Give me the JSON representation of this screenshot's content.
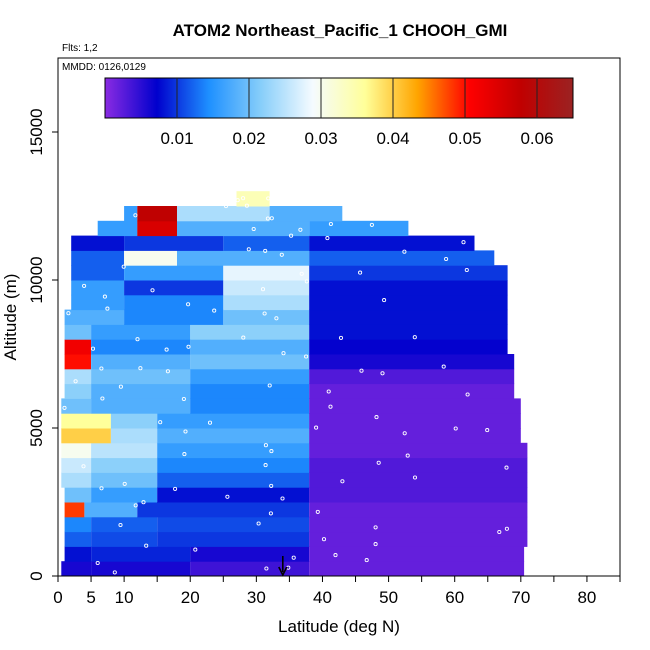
{
  "chart_data": {
    "type": "heatmap",
    "title": "ATOM2 Northeast_Pacific_1 CHOOH_GMI",
    "annotations": [
      "Flts: 1,2",
      "MMDD: 0126,0129"
    ],
    "xlabel": "Latitude (deg N)",
    "ylabel": "Altitude (m)",
    "xlim": [
      0,
      85
    ],
    "ylim": [
      0,
      17500
    ],
    "x_ticks": [
      0,
      5,
      10,
      20,
      30,
      40,
      50,
      60,
      70,
      80
    ],
    "x_minor_ticks": [
      15,
      25,
      35,
      45,
      55,
      65,
      75,
      85
    ],
    "y_ticks": [
      0,
      5000,
      10000,
      15000
    ],
    "colorbar": {
      "range": [
        0,
        0.065
      ],
      "ticks": [
        0.01,
        0.02,
        0.03,
        0.04,
        0.05,
        0.06
      ],
      "colors": [
        "#8a2be2",
        "#0000cd",
        "#1e90ff",
        "#87cefa",
        "#f5fbff",
        "#ffff99",
        "#ffa500",
        "#ff0000",
        "#c00000",
        "#9b2222"
      ]
    },
    "marker": {
      "x": 34,
      "label": "arrow"
    },
    "bands": [
      {
        "alt": [
          0,
          500
        ],
        "segments": [
          [
            0.5,
            5,
            0.006
          ],
          [
            5,
            20,
            0.006
          ],
          [
            20,
            38,
            0.004
          ],
          [
            38,
            70.5,
            0.002
          ]
        ]
      },
      {
        "alt": [
          500,
          1000
        ],
        "segments": [
          [
            1,
            5,
            0.008
          ],
          [
            5,
            20,
            0.009
          ],
          [
            20,
            38,
            0.006
          ],
          [
            38,
            70.5,
            0.002
          ]
        ]
      },
      {
        "alt": [
          1000,
          1500
        ],
        "segments": [
          [
            1,
            5,
            0.012
          ],
          [
            5,
            15,
            0.011
          ],
          [
            15,
            38,
            0.01
          ],
          [
            38,
            71,
            0.002
          ]
        ]
      },
      {
        "alt": [
          1500,
          2000
        ],
        "segments": [
          [
            1,
            5,
            0.014
          ],
          [
            5,
            15,
            0.012
          ],
          [
            15,
            38,
            0.011
          ],
          [
            38,
            71,
            0.002
          ]
        ]
      },
      {
        "alt": [
          2000,
          2500
        ],
        "segments": [
          [
            1,
            4,
            0.048
          ],
          [
            4,
            12,
            0.018
          ],
          [
            12,
            38,
            0.01
          ],
          [
            38,
            71,
            0.002
          ]
        ]
      },
      {
        "alt": [
          2500,
          3000
        ],
        "segments": [
          [
            1,
            5,
            0.02
          ],
          [
            5,
            15,
            0.016
          ],
          [
            15,
            38,
            0.008
          ],
          [
            38,
            71,
            0.003
          ]
        ]
      },
      {
        "alt": [
          3000,
          3500
        ],
        "segments": [
          [
            0.5,
            5,
            0.024
          ],
          [
            5,
            15,
            0.02
          ],
          [
            15,
            38,
            0.012
          ],
          [
            38,
            71,
            0.003
          ]
        ]
      },
      {
        "alt": [
          3500,
          4000
        ],
        "segments": [
          [
            0.5,
            5,
            0.026
          ],
          [
            5,
            15,
            0.022
          ],
          [
            15,
            38,
            0.014
          ],
          [
            38,
            71,
            0.003
          ]
        ]
      },
      {
        "alt": [
          4000,
          4500
        ],
        "segments": [
          [
            0.5,
            5,
            0.03
          ],
          [
            5,
            15,
            0.025
          ],
          [
            15,
            38,
            0.016
          ],
          [
            38,
            71,
            0.002
          ]
        ]
      },
      {
        "alt": [
          4500,
          5000
        ],
        "segments": [
          [
            0.5,
            8,
            0.04
          ],
          [
            8,
            15,
            0.024
          ],
          [
            15,
            38,
            0.018
          ],
          [
            38,
            70,
            0.002
          ]
        ]
      },
      {
        "alt": [
          5000,
          5500
        ],
        "segments": [
          [
            0.5,
            8,
            0.036
          ],
          [
            8,
            15,
            0.022
          ],
          [
            15,
            38,
            0.016
          ],
          [
            38,
            70,
            0.002
          ]
        ]
      },
      {
        "alt": [
          5500,
          6000
        ],
        "segments": [
          [
            0.5,
            5,
            0.02
          ],
          [
            5,
            20,
            0.018
          ],
          [
            20,
            38,
            0.014
          ],
          [
            38,
            70,
            0.002
          ]
        ]
      },
      {
        "alt": [
          6000,
          6500
        ],
        "segments": [
          [
            1,
            5,
            0.022
          ],
          [
            5,
            20,
            0.018
          ],
          [
            20,
            38,
            0.014
          ],
          [
            38,
            69,
            0.002
          ]
        ]
      },
      {
        "alt": [
          6500,
          7000
        ],
        "segments": [
          [
            1,
            5,
            0.024
          ],
          [
            5,
            20,
            0.02
          ],
          [
            20,
            38,
            0.016
          ],
          [
            38,
            69,
            0.003
          ]
        ]
      },
      {
        "alt": [
          7000,
          7500
        ],
        "segments": [
          [
            1,
            5,
            0.05
          ],
          [
            5,
            20,
            0.018
          ],
          [
            20,
            38,
            0.02
          ],
          [
            38,
            69,
            0.006
          ]
        ]
      },
      {
        "alt": [
          7500,
          8000
        ],
        "segments": [
          [
            1,
            5,
            0.052
          ],
          [
            5,
            20,
            0.014
          ],
          [
            20,
            38,
            0.018
          ],
          [
            38,
            68,
            0.007
          ]
        ]
      },
      {
        "alt": [
          8000,
          8500
        ],
        "segments": [
          [
            1,
            5,
            0.02
          ],
          [
            5,
            20,
            0.016
          ],
          [
            20,
            38,
            0.022
          ],
          [
            38,
            68,
            0.008
          ]
        ]
      },
      {
        "alt": [
          8500,
          9000
        ],
        "segments": [
          [
            1,
            10,
            0.018
          ],
          [
            10,
            25,
            0.014
          ],
          [
            25,
            38,
            0.02
          ],
          [
            38,
            68,
            0.008
          ]
        ]
      },
      {
        "alt": [
          9000,
          9500
        ],
        "segments": [
          [
            2,
            10,
            0.016
          ],
          [
            10,
            25,
            0.014
          ],
          [
            25,
            38,
            0.024
          ],
          [
            38,
            68,
            0.008
          ]
        ]
      },
      {
        "alt": [
          9500,
          10000
        ],
        "segments": [
          [
            2,
            10,
            0.016
          ],
          [
            10,
            25,
            0.01
          ],
          [
            25,
            38,
            0.026
          ],
          [
            38,
            68,
            0.008
          ]
        ]
      },
      {
        "alt": [
          10000,
          10500
        ],
        "segments": [
          [
            2,
            10,
            0.012
          ],
          [
            10,
            25,
            0.016
          ],
          [
            25,
            38,
            0.028
          ],
          [
            38,
            68,
            0.01
          ]
        ]
      },
      {
        "alt": [
          10500,
          11000
        ],
        "segments": [
          [
            2,
            10,
            0.012
          ],
          [
            10,
            18,
            0.03
          ],
          [
            18,
            38,
            0.018
          ],
          [
            38,
            66,
            0.012
          ]
        ]
      },
      {
        "alt": [
          11000,
          11500
        ],
        "segments": [
          [
            2,
            10,
            0.008
          ],
          [
            10,
            25,
            0.01
          ],
          [
            25,
            38,
            0.012
          ],
          [
            38,
            63,
            0.008
          ]
        ]
      },
      {
        "alt": [
          11500,
          12000
        ],
        "segments": [
          [
            6,
            12,
            0.016
          ],
          [
            12,
            18,
            0.055
          ],
          [
            18,
            38,
            0.018
          ],
          [
            38,
            53,
            0.016
          ]
        ]
      },
      {
        "alt": [
          12000,
          12500
        ],
        "segments": [
          [
            10,
            12,
            0.016
          ],
          [
            12,
            18,
            0.058
          ],
          [
            18,
            32,
            0.024
          ],
          [
            32,
            43,
            0.018
          ]
        ]
      },
      {
        "alt": [
          12500,
          13000
        ],
        "segments": [
          [
            27,
            32,
            0.034
          ]
        ]
      }
    ]
  }
}
